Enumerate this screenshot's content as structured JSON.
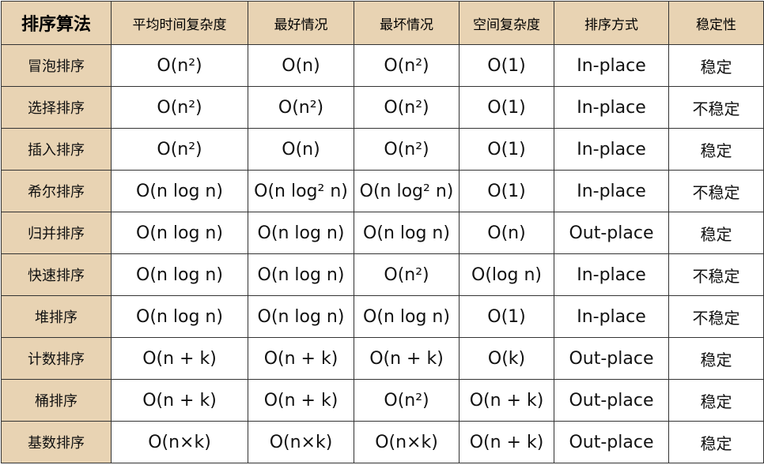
{
  "table": {
    "headers": [
      "排序算法",
      "平均时间复杂度",
      "最好情况",
      "最坏情况",
      "空间复杂度",
      "排序方式",
      "稳定性"
    ],
    "rows": [
      [
        "冒泡排序",
        "O(n²)",
        "O(n)",
        "O(n²)",
        "O(1)",
        "In-place",
        "稳定"
      ],
      [
        "选择排序",
        "O(n²)",
        "O(n²)",
        "O(n²)",
        "O(1)",
        "In-place",
        "不稳定"
      ],
      [
        "插入排序",
        "O(n²)",
        "O(n)",
        "O(n²)",
        "O(1)",
        "In-place",
        "稳定"
      ],
      [
        "希尔排序",
        "O(n log n)",
        "O(n log² n)",
        "O(n log² n)",
        "O(1)",
        "In-place",
        "不稳定"
      ],
      [
        "归并排序",
        "O(n log n)",
        "O(n log n)",
        "O(n log n)",
        "O(n)",
        "Out-place",
        "稳定"
      ],
      [
        "快速排序",
        "O(n log n)",
        "O(n log n)",
        "O(n²)",
        "O(log n)",
        "In-place",
        "不稳定"
      ],
      [
        "堆排序",
        "O(n log n)",
        "O(n log n)",
        "O(n log n)",
        "O(1)",
        "In-place",
        "不稳定"
      ],
      [
        "计数排序",
        "O(n + k)",
        "O(n + k)",
        "O(n + k)",
        "O(k)",
        "Out-place",
        "稳定"
      ],
      [
        "桶排序",
        "O(n + k)",
        "O(n + k)",
        "O(n²)",
        "O(n + k)",
        "Out-place",
        "稳定"
      ],
      [
        "基数排序",
        "O(n×k)",
        "O(n×k)",
        "O(n×k)",
        "O(n + k)",
        "Out-place",
        "稳定"
      ]
    ]
  }
}
